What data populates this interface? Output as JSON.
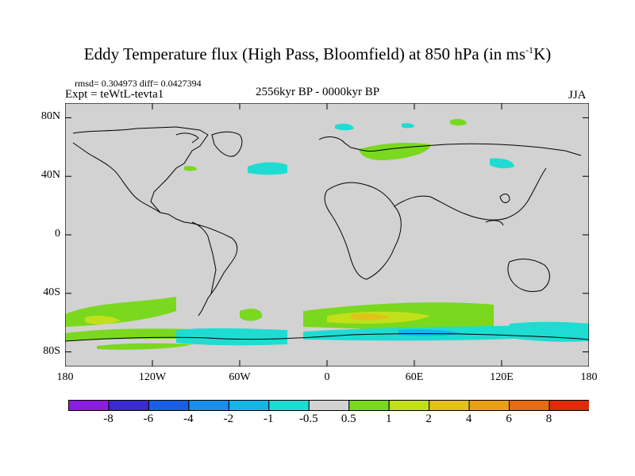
{
  "title": {
    "main": "Eddy Temperature flux (High Pass, Bloomfield) at 850 hPa (in ms",
    "sup": "-1",
    "end": "K)"
  },
  "stats": "rmsd= 0.304973 diff= 0.0427394",
  "experiment": "Expt = teWtL-tevta1",
  "period": "2556kyr BP - 0000kyr BP",
  "season": "JJA",
  "y_axis": {
    "labels": [
      "80N",
      "40N",
      "0",
      "40S",
      "80S"
    ],
    "values": [
      80,
      40,
      0,
      -40,
      -80
    ]
  },
  "x_axis": {
    "labels": [
      "180",
      "120W",
      "60W",
      "0",
      "60E",
      "120E",
      "180"
    ],
    "values": [
      -180,
      -120,
      -60,
      0,
      60,
      120,
      180
    ]
  },
  "map_extent": {
    "lon": [
      -180,
      180
    ],
    "lat": [
      -90,
      90
    ]
  },
  "colorbar": {
    "levels": [
      "-8",
      "-6",
      "-4",
      "-2",
      "-1",
      "-0.5",
      "0.5",
      "1",
      "2",
      "4",
      "6",
      "8"
    ],
    "colors": [
      "#8a1ee0",
      "#3a2ad0",
      "#1a5ee8",
      "#1a8ef0",
      "#14b6e6",
      "#1edcd2",
      "#d2d2d2",
      "#7ad81e",
      "#c2e01a",
      "#e2c21a",
      "#e8a014",
      "#e86a14",
      "#e02a0a"
    ]
  },
  "colors": {
    "land_background": "#d2d2d2",
    "coast": "#000000"
  }
}
